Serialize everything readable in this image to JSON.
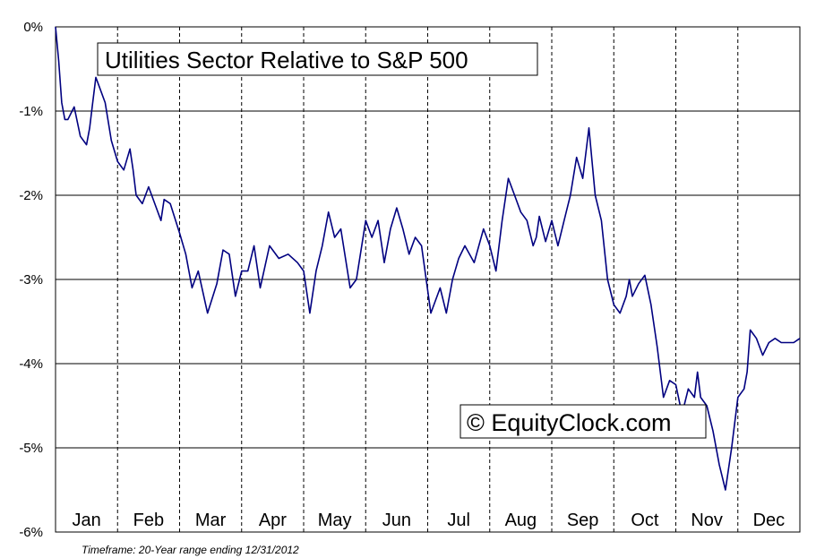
{
  "chart_data": {
    "type": "line",
    "title": "Utilities Sector Relative to S&P 500",
    "watermark": "© EquityClock.com",
    "footnote": "Timeframe: 20-Year range ending 12/31/2012",
    "xlabel": "",
    "ylabel": "",
    "ylim": [
      -6,
      0
    ],
    "yticks": [
      0,
      -1,
      -2,
      -3,
      -4,
      -5,
      -6
    ],
    "ytick_labels": [
      "0%",
      "-1%",
      "-2%",
      "-3%",
      "-4%",
      "-5%",
      "-6%"
    ],
    "xlim": [
      0,
      12
    ],
    "categories": [
      "Jan",
      "Feb",
      "Mar",
      "Apr",
      "May",
      "Jun",
      "Jul",
      "Aug",
      "Sep",
      "Oct",
      "Nov",
      "Dec"
    ],
    "grid": true,
    "line_color": "#000080",
    "series": [
      {
        "name": "Utilities Sector Relative to S&P 500",
        "x": [
          0,
          0.05,
          0.1,
          0.15,
          0.2,
          0.3,
          0.4,
          0.5,
          0.55,
          0.6,
          0.65,
          0.7,
          0.8,
          0.9,
          1.0,
          1.1,
          1.2,
          1.25,
          1.3,
          1.4,
          1.5,
          1.6,
          1.7,
          1.75,
          1.85,
          2.0,
          2.1,
          2.2,
          2.3,
          2.45,
          2.6,
          2.7,
          2.8,
          2.9,
          3.0,
          3.1,
          3.2,
          3.3,
          3.45,
          3.6,
          3.75,
          3.9,
          4.0,
          4.1,
          4.2,
          4.3,
          4.4,
          4.5,
          4.6,
          4.75,
          4.85,
          5.0,
          5.1,
          5.2,
          5.3,
          5.4,
          5.5,
          5.6,
          5.7,
          5.8,
          5.9,
          6.05,
          6.2,
          6.3,
          6.4,
          6.5,
          6.6,
          6.75,
          6.9,
          7.0,
          7.1,
          7.2,
          7.3,
          7.4,
          7.5,
          7.6,
          7.7,
          7.75,
          7.8,
          7.9,
          8.0,
          8.1,
          8.2,
          8.3,
          8.4,
          8.5,
          8.6,
          8.7,
          8.8,
          8.9,
          9.0,
          9.1,
          9.2,
          9.25,
          9.3,
          9.4,
          9.5,
          9.6,
          9.7,
          9.8,
          9.9,
          10.0,
          10.1,
          10.2,
          10.3,
          10.35,
          10.4,
          10.5,
          10.6,
          10.7,
          10.8,
          10.9,
          11.0,
          11.1,
          11.15,
          11.2,
          11.3,
          11.4,
          11.5,
          11.6,
          11.7,
          11.8,
          11.9,
          12.0
        ],
        "values": [
          0.0,
          -0.4,
          -0.9,
          -1.1,
          -1.1,
          -0.95,
          -1.3,
          -1.4,
          -1.2,
          -0.9,
          -0.6,
          -0.7,
          -0.9,
          -1.35,
          -1.6,
          -1.7,
          -1.45,
          -1.7,
          -2.0,
          -2.1,
          -1.9,
          -2.1,
          -2.3,
          -2.05,
          -2.1,
          -2.45,
          -2.7,
          -3.1,
          -2.9,
          -3.4,
          -3.05,
          -2.65,
          -2.7,
          -3.2,
          -2.9,
          -2.9,
          -2.6,
          -3.1,
          -2.6,
          -2.75,
          -2.7,
          -2.8,
          -2.9,
          -3.4,
          -2.9,
          -2.6,
          -2.2,
          -2.5,
          -2.4,
          -3.1,
          -3.0,
          -2.3,
          -2.5,
          -2.3,
          -2.8,
          -2.4,
          -2.15,
          -2.4,
          -2.7,
          -2.5,
          -2.6,
          -3.4,
          -3.1,
          -3.4,
          -3.0,
          -2.75,
          -2.6,
          -2.8,
          -2.4,
          -2.6,
          -2.9,
          -2.3,
          -1.8,
          -2.0,
          -2.2,
          -2.3,
          -2.6,
          -2.5,
          -2.25,
          -2.55,
          -2.3,
          -2.6,
          -2.3,
          -2.0,
          -1.55,
          -1.8,
          -1.2,
          -2.0,
          -2.3,
          -3.0,
          -3.3,
          -3.4,
          -3.2,
          -3.0,
          -3.2,
          -3.05,
          -2.95,
          -3.3,
          -3.8,
          -4.4,
          -4.2,
          -4.25,
          -4.6,
          -4.3,
          -4.4,
          -4.1,
          -4.4,
          -4.5,
          -4.8,
          -5.2,
          -5.5,
          -5.0,
          -4.4,
          -4.3,
          -4.1,
          -3.6,
          -3.7,
          -3.9,
          -3.75,
          -3.7,
          -3.75,
          -3.75,
          -3.75,
          -3.7
        ]
      }
    ]
  }
}
